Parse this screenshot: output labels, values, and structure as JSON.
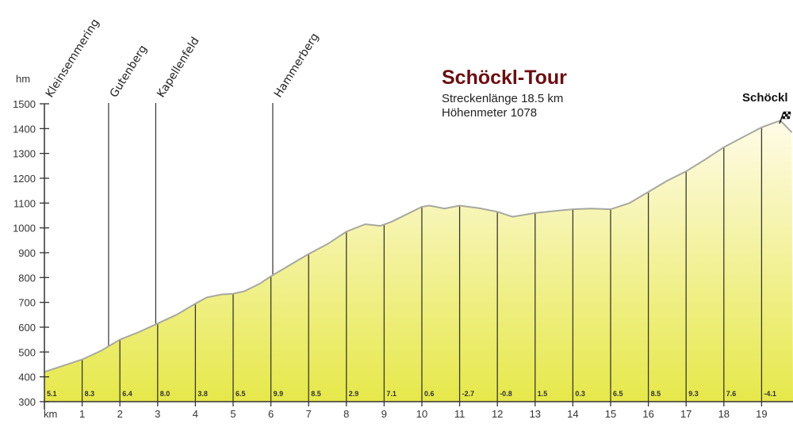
{
  "header": {
    "title": "Schöckl-Tour",
    "length_label": "Streckenlänge  18.5 km",
    "elevation_gain_label": "Höhenmeter 1078"
  },
  "summit": {
    "label": "Schöckl",
    "icon": "checkered-flag-icon"
  },
  "colors": {
    "title": "#6b0f12",
    "fill_top": "#fffbe8",
    "fill_bottom": "#e6e84a",
    "profile_line": "#a8a8a0",
    "axis": "#333333"
  },
  "chart_data": {
    "type": "area",
    "title": "Schöckl-Tour",
    "subtitle": [
      "Streckenlänge 18.5 km",
      "Höhenmeter 1078"
    ],
    "xlabel": "km",
    "ylabel": "hm",
    "xlim": [
      0,
      19.5
    ],
    "ylim": [
      300,
      1500
    ],
    "y_ticks": [
      300,
      400,
      500,
      600,
      700,
      800,
      900,
      1000,
      1100,
      1200,
      1300,
      1400,
      1500
    ],
    "x_ticks": [
      1,
      2,
      3,
      4,
      5,
      6,
      7,
      8,
      9,
      10,
      11,
      12,
      13,
      14,
      15,
      16,
      17,
      18,
      19
    ],
    "grid": false,
    "profile": {
      "x_km": [
        0,
        0.5,
        1,
        1.5,
        2,
        2.5,
        3,
        3.5,
        4,
        4.3,
        4.7,
        5,
        5.3,
        5.7,
        6,
        6.5,
        7,
        7.5,
        8,
        8.5,
        8.9,
        9.2,
        9.6,
        10,
        10.2,
        10.6,
        11,
        11.5,
        12,
        12.4,
        13,
        13.5,
        14,
        14.5,
        15,
        15.5,
        16,
        16.5,
        17,
        17.5,
        18,
        18.5,
        19,
        19.3,
        19.5,
        19.8
      ],
      "elevation_m": [
        420,
        445,
        470,
        505,
        550,
        580,
        615,
        650,
        695,
        720,
        732,
        735,
        745,
        775,
        805,
        850,
        895,
        935,
        985,
        1015,
        1008,
        1025,
        1055,
        1085,
        1090,
        1078,
        1090,
        1080,
        1065,
        1045,
        1060,
        1068,
        1075,
        1078,
        1075,
        1100,
        1145,
        1190,
        1228,
        1275,
        1325,
        1365,
        1405,
        1422,
        1432,
        1385
      ]
    },
    "gradients_percent": [
      {
        "km": 0,
        "value": "5.1"
      },
      {
        "km": 1,
        "value": "8.3"
      },
      {
        "km": 2,
        "value": "6.4"
      },
      {
        "km": 3,
        "value": "8.0"
      },
      {
        "km": 4,
        "value": "3.8"
      },
      {
        "km": 5,
        "value": "6.5"
      },
      {
        "km": 6,
        "value": "9.9"
      },
      {
        "km": 7,
        "value": "8.5"
      },
      {
        "km": 8,
        "value": "2.9"
      },
      {
        "km": 9,
        "value": "7.1"
      },
      {
        "km": 10,
        "value": "0.6"
      },
      {
        "km": 11,
        "value": "-2.7"
      },
      {
        "km": 12,
        "value": "-0.8"
      },
      {
        "km": 13,
        "value": "1.5"
      },
      {
        "km": 14,
        "value": "0.3"
      },
      {
        "km": 15,
        "value": "6.5"
      },
      {
        "km": 16,
        "value": "8.5"
      },
      {
        "km": 17,
        "value": "9.3"
      },
      {
        "km": 18,
        "value": "7.6"
      },
      {
        "km": 19,
        "value": "-4.1"
      }
    ],
    "waypoints": [
      {
        "name": "Kleinsemmering",
        "km": 0
      },
      {
        "name": "Gutenberg",
        "km": 1.7
      },
      {
        "name": "Kapellenfeld",
        "km": 2.95
      },
      {
        "name": "Hammerberg",
        "km": 6.05
      },
      {
        "name": "Schöckl",
        "km": 19.5
      }
    ]
  }
}
